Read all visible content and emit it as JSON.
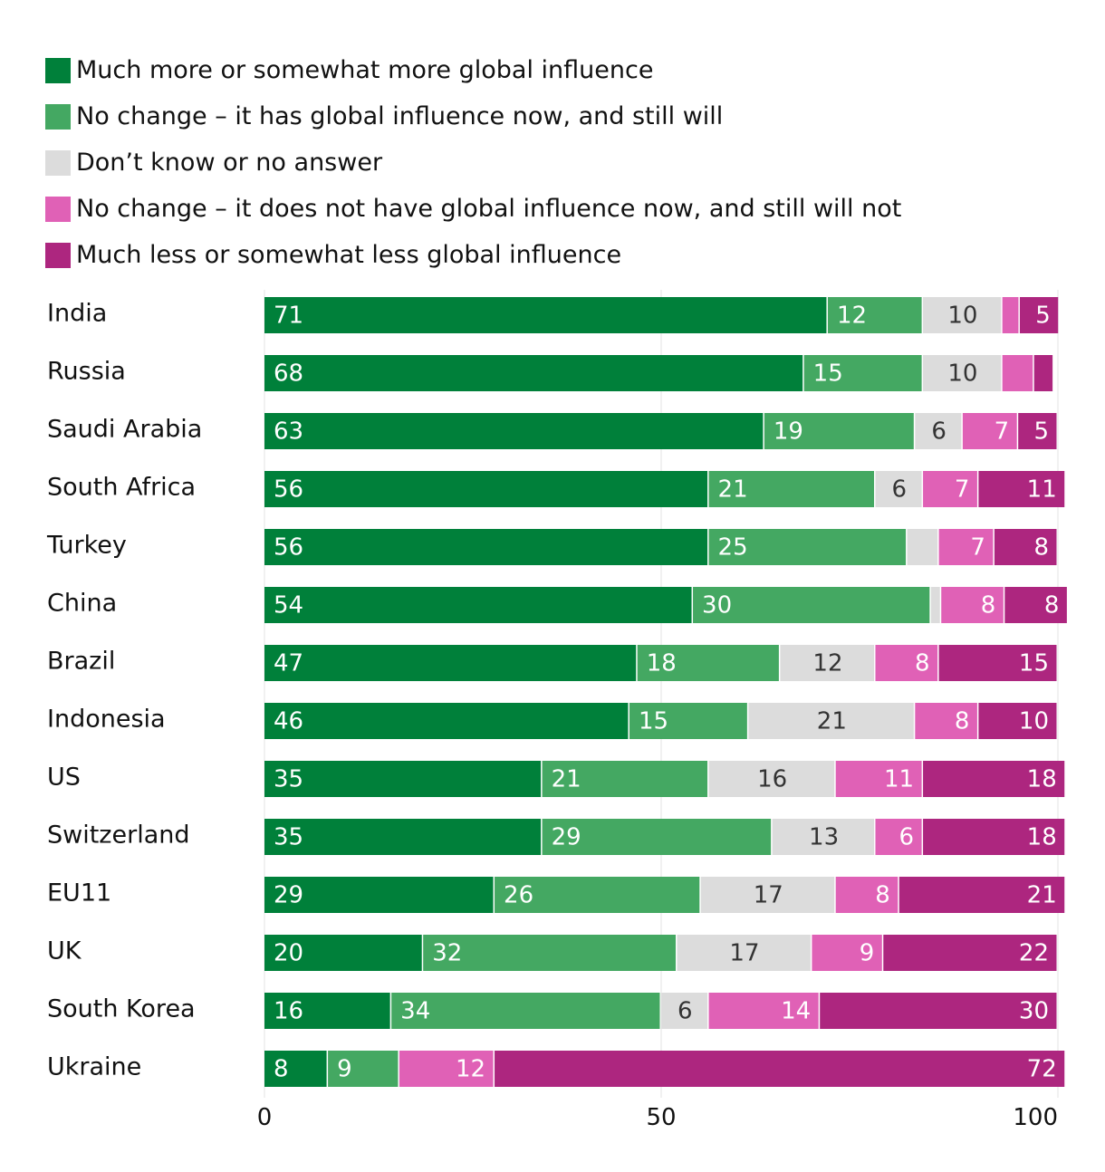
{
  "chart_data": {
    "type": "bar",
    "orientation": "horizontal",
    "stacked": true,
    "title": "",
    "xlabel": "",
    "ylabel": "",
    "xlim": [
      0,
      100
    ],
    "xticks": [
      "0",
      "50",
      "100"
    ],
    "grid": "vertical",
    "legend_position": "top-left",
    "categories": [
      "India",
      "Russia",
      "Saudi Arabia",
      "South Africa",
      "Turkey",
      "China",
      "Brazil",
      "Indonesia",
      "US",
      "Switzerland",
      "EU11",
      "UK",
      "South Korea",
      "Ukraine"
    ],
    "series": [
      {
        "name": "Much more or somewhat more global influence",
        "color": "#00803a",
        "label_color": "#ffffff",
        "label_align": "start",
        "values": [
          71,
          68,
          63,
          56,
          56,
          54,
          47,
          46,
          35,
          35,
          29,
          20,
          16,
          8
        ],
        "labels": [
          "71",
          "68",
          "63",
          "56",
          "56",
          "54",
          "47",
          "46",
          "35",
          "35",
          "29",
          "20",
          "16",
          "8"
        ]
      },
      {
        "name": "No change – it has global influence now, and still will",
        "color": "#44a862",
        "label_color": "#ffffff",
        "label_align": "start",
        "values": [
          12,
          15,
          19,
          21,
          25,
          30,
          18,
          15,
          21,
          29,
          26,
          32,
          34,
          9
        ],
        "labels": [
          "12",
          "15",
          "19",
          "21",
          "25",
          "30",
          "18",
          "15",
          "21",
          "29",
          "26",
          "32",
          "34",
          "9"
        ]
      },
      {
        "name": "Don’t know or no answer",
        "color": "#dcdcdc",
        "label_color": "#333333",
        "label_align": "center",
        "values": [
          10,
          10,
          6,
          6,
          4,
          1.3,
          12,
          21,
          16,
          13,
          17,
          17,
          6,
          0
        ],
        "labels": [
          "10",
          "10",
          "6",
          "6",
          "",
          "",
          "12",
          "21",
          "16",
          "13",
          "17",
          "17",
          "6",
          ""
        ]
      },
      {
        "name": "No change – it does not have global influence now, and still will not",
        "color": "#e061b6",
        "label_color": "#ffffff",
        "label_align": "end",
        "values": [
          2.2,
          4,
          7,
          7,
          7,
          8,
          8,
          8,
          11,
          6,
          8,
          9,
          14,
          12
        ],
        "labels": [
          "",
          "",
          "7",
          "7",
          "7",
          "8",
          "8",
          "8",
          "11",
          "6",
          "8",
          "9",
          "14",
          "12"
        ]
      },
      {
        "name": "Much less or somewhat less global influence",
        "color": "#ad267f",
        "label_color": "#ffffff",
        "label_align": "end",
        "values": [
          5,
          2.5,
          5,
          11,
          8,
          8,
          15,
          10,
          18,
          18,
          21,
          22,
          30,
          72
        ],
        "labels": [
          "5",
          "",
          "5",
          "11",
          "8",
          "8",
          "15",
          "10",
          "18",
          "18",
          "21",
          "22",
          "30",
          "72"
        ]
      }
    ]
  }
}
